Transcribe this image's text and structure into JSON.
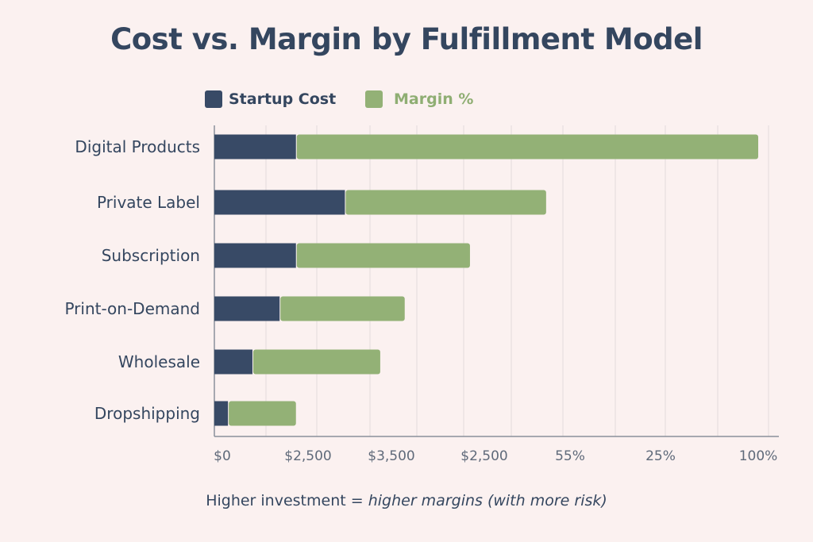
{
  "chart_data": {
    "type": "bar",
    "orientation": "horizontal",
    "stacked": true,
    "title": "Cost vs. Margin by Fulfillment Model",
    "categories": [
      "Digital Products",
      "Private Label",
      "Subscription",
      "Print-on-Demand",
      "Wholesale",
      "Dropshipping"
    ],
    "series": [
      {
        "name": "Startup Cost",
        "color": "#384a66",
        "values": [
          15,
          24,
          15,
          12,
          7,
          2.5
        ]
      },
      {
        "name": "Margin %",
        "color": "#93b176",
        "values": [
          85,
          37,
          32,
          23,
          23.5,
          12.5
        ]
      }
    ],
    "xlim": [
      0,
      100
    ],
    "x_tick_labels": [
      "$0",
      "$2,500",
      "$3,500",
      "$2,500",
      "55%",
      "25%",
      "100%"
    ],
    "grid": true,
    "legend_position": "top",
    "footer": {
      "bold": "Higher investment",
      "sep": " = ",
      "italic": "higher margins (with more risk)"
    }
  }
}
